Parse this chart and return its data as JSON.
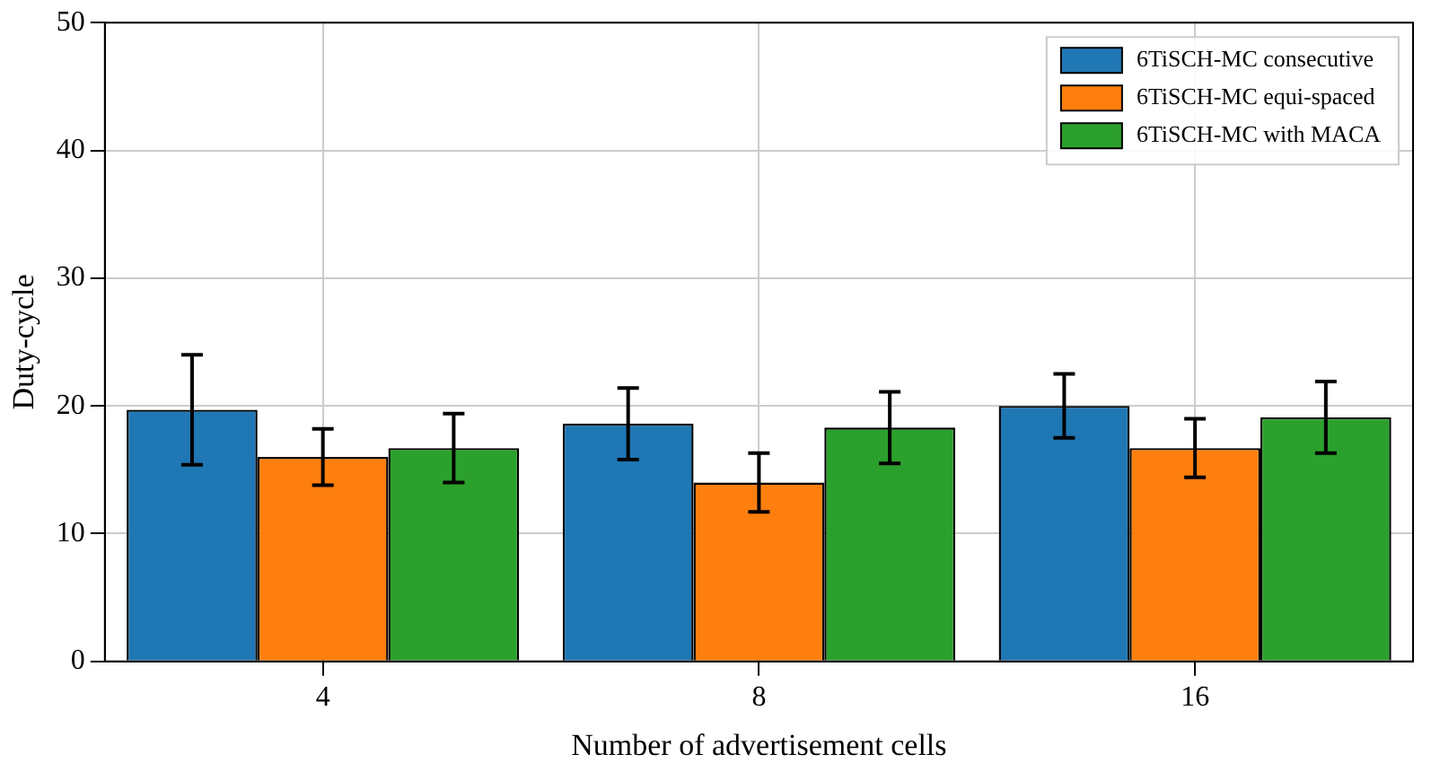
{
  "chart_data": {
    "type": "bar",
    "xlabel": "Number of advertisement cells",
    "ylabel": "Duty-cycle",
    "categories": [
      "4",
      "8",
      "16"
    ],
    "series": [
      {
        "name": "6TiSCH-MC consecutive",
        "color": "#1f77b4",
        "values": [
          19.7,
          18.6,
          20.0
        ],
        "errors": [
          4.3,
          2.8,
          2.5
        ]
      },
      {
        "name": "6TiSCH-MC equi-spaced",
        "color": "#ff7f0e",
        "values": [
          16.0,
          14.0,
          16.7
        ],
        "errors": [
          2.2,
          2.3,
          2.3
        ]
      },
      {
        "name": "6TiSCH-MC with MACA",
        "color": "#2ca02c",
        "values": [
          16.7,
          18.3,
          19.1
        ],
        "errors": [
          2.7,
          2.8,
          2.8
        ]
      }
    ],
    "ylim": [
      0,
      50
    ],
    "yticks": [
      0,
      10,
      20,
      30,
      40,
      50
    ],
    "grid": true,
    "legend": "top right"
  }
}
